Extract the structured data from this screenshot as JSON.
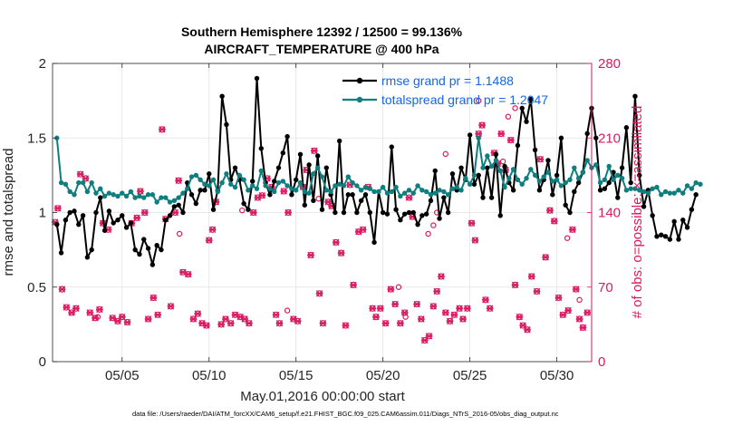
{
  "colors": {
    "rmse": "#000000",
    "totalspread": "#0E7E7E",
    "obs": "#D81B60",
    "legend_text": "#1565E8",
    "grid": "#E2E2E2"
  },
  "chart_data": {
    "type": "line",
    "title": "Southern Hemisphere 12392 / 12500 = 99.136%",
    "subtitle": "AIRCRAFT_TEMPERATURE @ 400 hPa",
    "xlabel": "May.01,2016 00:00:00 start",
    "ylabel": "rmse and totalspread",
    "ylabel_right": "# of obs: o=possible; ×=assimilated",
    "footer": "data file: /Users/raeder/DAI/ATM_forcXX/CAM6_setup/f.e21.FHIST_BGC.f09_025.CAM6assim.011/Diags_NTrS_2016-05/obs_diag_output.nc",
    "xlim": [
      1,
      32
    ],
    "ylim": [
      0,
      2
    ],
    "ylim_right": [
      0,
      280
    ],
    "x_ticks": [
      5,
      10,
      15,
      20,
      25,
      30
    ],
    "x_tick_labels": [
      "05/05",
      "05/10",
      "05/15",
      "05/20",
      "05/25",
      "05/30"
    ],
    "y_ticks": [
      0,
      0.5,
      1,
      1.5,
      2
    ],
    "y_tick_labels": [
      "0",
      "0.5",
      "1",
      "1.5",
      "2"
    ],
    "y_right_ticks": [
      0,
      70,
      140,
      210,
      280
    ],
    "y_right_tick_labels": [
      "0",
      "70",
      "140",
      "210",
      "280"
    ],
    "legend": [
      {
        "name": "rmse grand pr = 1.1488",
        "series": "rmse"
      },
      {
        "name": "totalspread grand pr = 1.2047",
        "series": "totalspread"
      }
    ],
    "series": [
      {
        "name": "rmse",
        "axis": "left",
        "x_start": 1.25,
        "x_step": 0.25,
        "values": [
          0.92,
          0.73,
          0.95,
          1.0,
          1.01,
          0.92,
          0.98,
          0.7,
          0.75,
          1.0,
          1.1,
          0.88,
          1.01,
          0.93,
          0.95,
          0.98,
          0.9,
          0.93,
          0.75,
          0.72,
          0.82,
          0.76,
          0.65,
          0.78,
          0.75,
          0.95,
          0.98,
          1.04,
          1.05,
          1.0,
          1.2,
          1.12,
          1.06,
          1.15,
          1.15,
          1.26,
          1.02,
          1.15,
          1.78,
          1.59,
          1.22,
          1.3,
          1.22,
          1.06,
          1.02,
          1.21,
          1.9,
          1.43,
          1.2,
          1.12,
          1.21,
          1.3,
          1.4,
          1.51,
          1.12,
          1.22,
          1.39,
          1.05,
          1.32,
          1.08,
          1.38,
          1.02,
          1.3,
          1.12,
          1.0,
          1.48,
          1.0,
          1.12,
          1.12,
          1.0,
          1.08,
          1.12,
          1.0,
          0.8,
          1.14,
          1.0,
          0.99,
          1.44,
          1.02,
          0.95,
          0.99,
          1.0,
          1.0,
          0.92,
          0.98,
          0.99,
          1.08,
          1.28,
          0.96,
          1.1,
          1.0,
          1.26,
          1.15,
          1.3,
          1.22,
          1.52,
          1.19,
          1.25,
          1.1,
          1.3,
          1.1,
          1.39,
          0.98,
          1.31,
          1.2,
          1.15,
          1.45,
          1.7,
          1.61,
          1.76,
          1.42,
          1.15,
          1.22,
          1.35,
          1.12,
          1.25,
          1.5,
          1.05,
          1.0,
          1.14,
          1.2,
          1.27,
          1.53,
          1.7,
          1.5,
          1.15,
          1.16,
          1.2,
          1.27,
          1.1,
          1.3,
          1.57,
          1.2,
          1.78,
          1.25,
          1.04,
          1.15,
          0.98,
          0.84,
          0.85,
          0.84,
          0.82,
          0.94,
          0.82,
          0.95,
          0.9,
          1.02,
          1.12
        ]
      },
      {
        "name": "totalspread",
        "axis": "left",
        "x_start": 1.25,
        "x_step": 0.25,
        "values": [
          1.5,
          1.2,
          1.19,
          1.14,
          1.12,
          1.2,
          1.2,
          1.14,
          1.2,
          1.13,
          1.16,
          1.11,
          1.13,
          1.12,
          1.11,
          1.13,
          1.11,
          1.14,
          1.1,
          1.11,
          1.1,
          1.12,
          1.12,
          1.07,
          1.1,
          1.1,
          1.07,
          1.08,
          1.1,
          1.13,
          1.16,
          1.24,
          1.25,
          1.22,
          1.19,
          1.18,
          1.22,
          1.14,
          1.2,
          1.26,
          1.19,
          1.17,
          1.25,
          1.22,
          1.15,
          1.18,
          1.16,
          1.28,
          1.18,
          1.16,
          1.14,
          1.2,
          1.21,
          1.18,
          1.16,
          1.15,
          1.2,
          1.14,
          1.13,
          1.26,
          1.3,
          1.24,
          1.15,
          1.14,
          1.18,
          1.19,
          1.18,
          1.24,
          1.2,
          1.18,
          1.15,
          1.17,
          1.16,
          1.14,
          1.14,
          1.17,
          1.13,
          1.14,
          1.17,
          1.11,
          1.13,
          1.15,
          1.13,
          1.18,
          1.15,
          1.14,
          1.12,
          1.13,
          1.15,
          1.14,
          1.12,
          1.16,
          1.17,
          1.15,
          1.23,
          1.19,
          1.25,
          1.5,
          1.3,
          1.38,
          1.31,
          1.35,
          1.28,
          1.17,
          1.23,
          1.29,
          1.22,
          1.19,
          1.23,
          1.29,
          1.25,
          1.21,
          1.24,
          1.27,
          1.21,
          1.22,
          1.18,
          1.2,
          1.22,
          1.3,
          1.23,
          1.27,
          1.35,
          1.3,
          1.32,
          1.2,
          1.22,
          1.31,
          1.22,
          1.25,
          1.23,
          1.15,
          1.16,
          1.16,
          1.15,
          1.14,
          1.13,
          1.16,
          1.17,
          1.12,
          1.14,
          1.13,
          1.13,
          1.15,
          1.13,
          1.18,
          1.16,
          1.2,
          1.19
        ]
      },
      {
        "name": "obs (possible and assimilated)",
        "axis": "right",
        "points": [
          [
            1.15,
            131
          ],
          [
            1.3,
            144
          ],
          [
            1.55,
            68
          ],
          [
            1.8,
            51
          ],
          [
            2.1,
            46
          ],
          [
            2.35,
            50
          ],
          [
            2.6,
            176
          ],
          [
            2.9,
            172
          ],
          [
            3.15,
            46
          ],
          [
            3.45,
            41
          ],
          [
            3.7,
            49
          ],
          [
            3.9,
            130
          ],
          [
            4.2,
            124
          ],
          [
            4.45,
            41
          ],
          [
            4.75,
            38
          ],
          [
            5.0,
            42
          ],
          [
            5.3,
            37
          ],
          [
            5.55,
            130
          ],
          [
            5.85,
            135
          ],
          [
            6.05,
            160
          ],
          [
            6.3,
            140
          ],
          [
            6.5,
            40
          ],
          [
            6.8,
            60
          ],
          [
            7.05,
            44
          ],
          [
            7.3,
            218
          ],
          [
            7.5,
            134
          ],
          [
            7.8,
            52
          ],
          [
            8.05,
            140
          ],
          [
            8.25,
            170
          ],
          [
            8.5,
            84
          ],
          [
            8.8,
            82
          ],
          [
            9.1,
            40
          ],
          [
            9.35,
            45
          ],
          [
            9.6,
            36
          ],
          [
            9.85,
            34
          ],
          [
            10.0,
            114
          ],
          [
            10.2,
            124
          ],
          [
            10.4,
            150
          ],
          [
            10.7,
            35
          ],
          [
            10.95,
            40
          ],
          [
            11.25,
            36
          ],
          [
            11.5,
            44
          ],
          [
            11.8,
            42
          ],
          [
            12.05,
            40
          ],
          [
            12.3,
            36
          ],
          [
            12.55,
            140
          ],
          [
            12.8,
            154
          ],
          [
            13.05,
            156
          ],
          [
            13.35,
            172
          ],
          [
            13.6,
            164
          ],
          [
            13.85,
            44
          ],
          [
            14.05,
            36
          ],
          [
            14.3,
            160
          ],
          [
            14.55,
            140
          ],
          [
            14.85,
            40
          ],
          [
            15.1,
            38
          ],
          [
            15.4,
            164
          ],
          [
            15.6,
            180
          ],
          [
            15.85,
            100
          ],
          [
            16.05,
            198
          ],
          [
            16.35,
            64
          ],
          [
            16.55,
            36
          ],
          [
            16.85,
            150
          ],
          [
            17.05,
            146
          ],
          [
            17.3,
            112
          ],
          [
            17.6,
            102
          ],
          [
            17.85,
            34
          ],
          [
            18.1,
            166
          ],
          [
            18.3,
            72
          ],
          [
            18.6,
            122
          ],
          [
            18.85,
            124
          ],
          [
            19.15,
            164
          ],
          [
            19.4,
            50
          ],
          [
            19.6,
            42
          ],
          [
            19.85,
            50
          ],
          [
            20.15,
            36
          ],
          [
            20.45,
            68
          ],
          [
            20.7,
            54
          ],
          [
            21.0,
            36
          ],
          [
            21.25,
            46
          ],
          [
            21.5,
            154
          ],
          [
            21.7,
            136
          ],
          [
            21.95,
            54
          ],
          [
            22.2,
            40
          ],
          [
            22.4,
            20
          ],
          [
            22.65,
            24
          ],
          [
            22.9,
            52
          ],
          [
            23.1,
            66
          ],
          [
            23.35,
            80
          ],
          [
            23.6,
            46
          ],
          [
            23.85,
            38
          ],
          [
            24.1,
            44
          ],
          [
            24.4,
            50
          ],
          [
            24.6,
            40
          ],
          [
            24.85,
            50
          ],
          [
            25.1,
            130
          ],
          [
            25.3,
            114
          ],
          [
            25.5,
            214
          ],
          [
            25.7,
            222
          ],
          [
            25.9,
            58
          ],
          [
            26.15,
            50
          ],
          [
            26.4,
            196
          ],
          [
            26.6,
            186
          ],
          [
            26.8,
            214
          ],
          [
            27.05,
            180
          ],
          [
            27.35,
            208
          ],
          [
            27.6,
            72
          ],
          [
            27.85,
            42
          ],
          [
            28.05,
            34
          ],
          [
            28.3,
            30
          ],
          [
            28.55,
            80
          ],
          [
            28.85,
            66
          ],
          [
            29.05,
            190
          ],
          [
            29.35,
            98
          ],
          [
            29.6,
            142
          ],
          [
            29.85,
            132
          ],
          [
            30.1,
            60
          ],
          [
            30.35,
            44
          ],
          [
            30.65,
            48
          ],
          [
            30.9,
            124
          ],
          [
            31.1,
            68
          ],
          [
            31.3,
            40
          ],
          [
            31.5,
            32
          ],
          [
            31.75,
            46
          ]
        ]
      }
    ],
    "obs_possible_extra": [
      [
        3.6,
        42
      ],
      [
        8.3,
        120
      ],
      [
        11.9,
        142
      ],
      [
        14.5,
        48
      ],
      [
        16.3,
        153
      ],
      [
        20.9,
        70
      ],
      [
        21.3,
        42
      ],
      [
        22.6,
        120
      ],
      [
        22.9,
        128
      ],
      [
        23.1,
        140
      ],
      [
        23.6,
        195
      ],
      [
        25.5,
        245
      ],
      [
        26.9,
        188
      ],
      [
        27.2,
        230
      ],
      [
        27.6,
        238
      ],
      [
        30.6,
        116
      ],
      [
        31.3,
        58
      ]
    ]
  }
}
